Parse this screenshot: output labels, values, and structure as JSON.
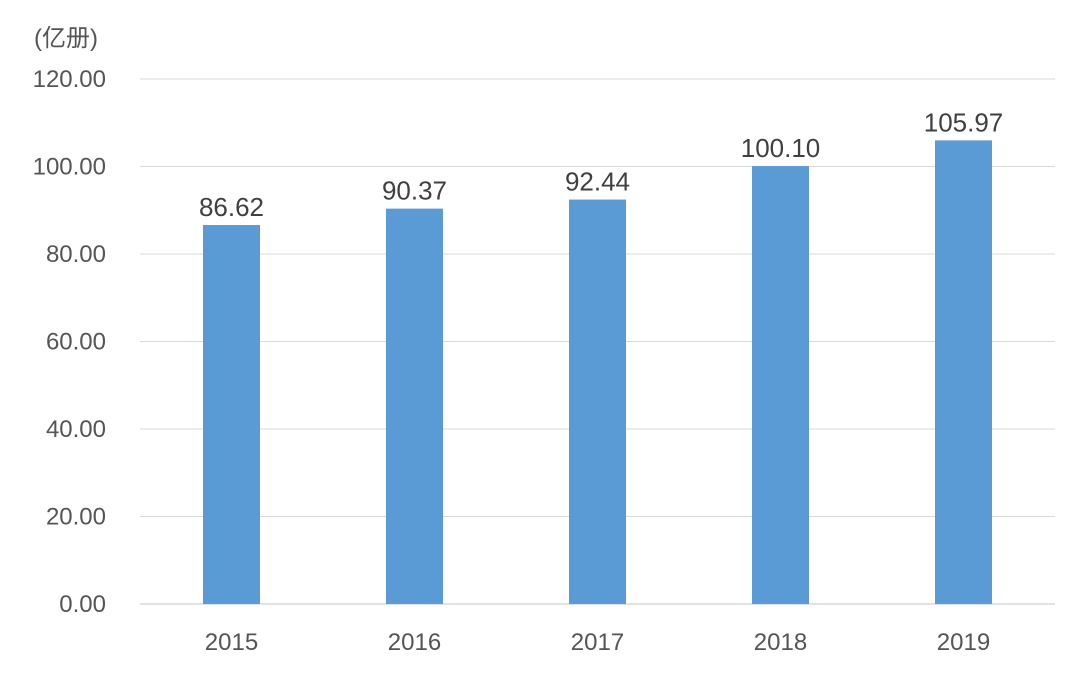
{
  "chart_data": {
    "type": "bar",
    "title": "",
    "unit_label": "(亿册)",
    "xlabel": "",
    "ylabel": "",
    "categories": [
      "2015",
      "2016",
      "2017",
      "2018",
      "2019"
    ],
    "values": [
      86.62,
      90.37,
      92.44,
      100.1,
      105.97
    ],
    "value_labels": [
      "86.62",
      "90.37",
      "92.44",
      "100.10",
      "105.97"
    ],
    "ylim": [
      0,
      120
    ],
    "yticks": [
      "0.00",
      "20.00",
      "40.00",
      "60.00",
      "80.00",
      "100.00",
      "120.00"
    ],
    "grid": true,
    "legend": "none",
    "bar_color": "#5b9bd5"
  }
}
